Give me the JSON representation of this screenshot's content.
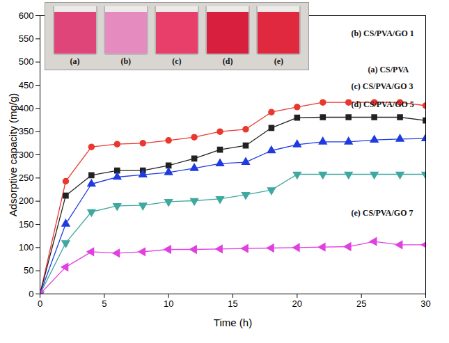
{
  "chart_data": {
    "type": "line",
    "xlabel": "Time (h)",
    "ylabel": "Adsorptive capacity (mg/g)",
    "x": [
      0,
      2,
      4,
      6,
      8,
      10,
      12,
      14,
      16,
      18,
      20,
      22,
      24,
      26,
      28,
      30
    ],
    "xlim": [
      0,
      30
    ],
    "xticks": [
      0,
      5,
      10,
      15,
      20,
      25,
      30
    ],
    "ylim": [
      0,
      600
    ],
    "yticks": [
      0,
      50,
      100,
      150,
      200,
      250,
      300,
      350,
      400,
      450,
      500,
      550,
      600
    ],
    "series": [
      {
        "name": "(b) CS/PVA/GO 1",
        "color": "#e8382f",
        "marker": "circle",
        "label_x": 24.2,
        "label_y": 561,
        "values": [
          0,
          243,
          317,
          323,
          325,
          331,
          338,
          350,
          355,
          392,
          403,
          413,
          413,
          413,
          413,
          406
        ]
      },
      {
        "name": "(a) CS/PVA",
        "color": "#222222",
        "marker": "square",
        "label_x": 25.5,
        "label_y": 483,
        "values": [
          0,
          212,
          256,
          266,
          266,
          277,
          292,
          311,
          320,
          358,
          380,
          381,
          381,
          381,
          381,
          374
        ]
      },
      {
        "name": "(c) CS/PVA/GO 3",
        "color": "#1f3be0",
        "marker": "triangle",
        "label_x": 24.2,
        "label_y": 447,
        "values": [
          0,
          151,
          237,
          252,
          257,
          262,
          271,
          281,
          284,
          309,
          322,
          328,
          328,
          332,
          334,
          335
        ]
      },
      {
        "name": "(d) CS/PVA/GO 5",
        "color": "#3fa8a0",
        "marker": "triangle-down",
        "label_x": 24.2,
        "label_y": 408,
        "values": [
          0,
          110,
          177,
          190,
          191,
          199,
          201,
          205,
          214,
          224,
          258,
          258,
          258,
          258,
          258,
          258
        ]
      },
      {
        "name": "(e) CS/PVA/GO 7",
        "color": "#e040e0",
        "marker": "triangle-left",
        "label_x": 24.2,
        "label_y": 175,
        "values": [
          0,
          58,
          91,
          88,
          91,
          96,
          96,
          97,
          98,
          99,
          100,
          101,
          102,
          113,
          106,
          106
        ]
      }
    ],
    "inset": {
      "labels": [
        "(a)",
        "(b)",
        "(c)",
        "(d)",
        "(e)"
      ],
      "colors": [
        "#e0457a",
        "#e58bc0",
        "#e83e6a",
        "#d8203e",
        "#e0283e"
      ]
    }
  }
}
